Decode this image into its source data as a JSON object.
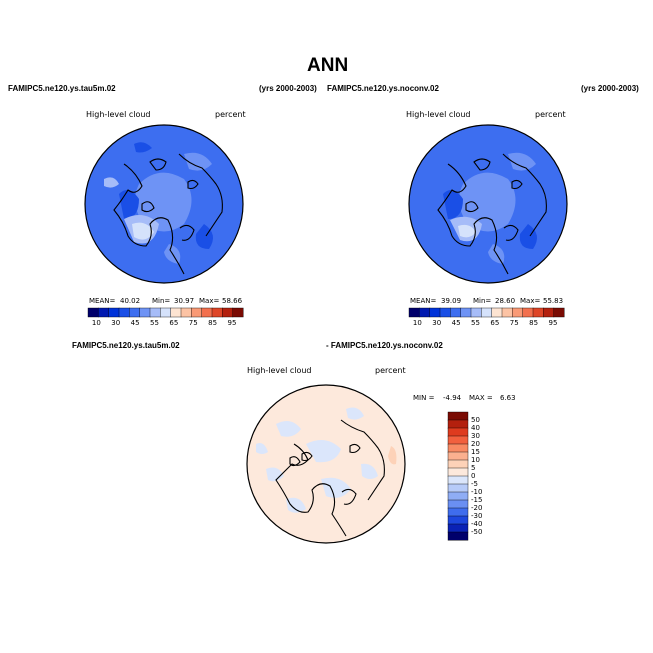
{
  "page": {
    "title": "ANN",
    "left_case": "FAMIPC5.ne120.ys.tau5m.02",
    "left_years": "(yrs 2000-2003)",
    "right_case": "FAMIPC5.ne120.ys.noconv.02",
    "right_years": "(yrs 2000-2003)",
    "diff_left_label": "FAMIPC5.ne120.ys.tau5m.02",
    "diff_right_label": "- FAMIPC5.ne120.ys.noconv.02"
  },
  "panels": [
    {
      "id": "tau5m",
      "variable": "High-level cloud",
      "units": "percent",
      "mean_label": "MEAN=",
      "mean": "40.02",
      "min_label": "Min=",
      "min": "30.97",
      "max_label": "Max=",
      "max": "58.66"
    },
    {
      "id": "noconv",
      "variable": "High-level cloud",
      "units": "percent",
      "mean_label": "MEAN=",
      "mean": "39.09",
      "min_label": "Min=",
      "min": "28.60",
      "max_label": "Max=",
      "max": "55.83"
    }
  ],
  "difference": {
    "variable": "High-level cloud",
    "units": "percent",
    "min_label": "MIN =",
    "min": "-4.94",
    "max_label": "MAX =",
    "max": "6.63"
  },
  "colorbar_abs": {
    "labels": [
      "10",
      "30",
      "45",
      "55",
      "65",
      "75",
      "85",
      "95"
    ],
    "colors": [
      "#00006b",
      "#0019b0",
      "#0033d9",
      "#1a4fe6",
      "#3d6ef0",
      "#6e93f5",
      "#a6bcf8",
      "#d5e2fb",
      "#fde4d2",
      "#fcc3a4",
      "#f99a76",
      "#f2704e",
      "#de4628",
      "#b3200e",
      "#7a0b03"
    ]
  },
  "colorbar_diff": {
    "labels": [
      "50",
      "40",
      "30",
      "20",
      "15",
      "10",
      "5",
      "0",
      "-5",
      "-10",
      "-15",
      "-20",
      "-30",
      "-40",
      "-50"
    ],
    "colors": [
      "#7a0b03",
      "#b3200e",
      "#de3b1f",
      "#f2603e",
      "#f98a63",
      "#fbb08f",
      "#fdd2b8",
      "#fde9dc",
      "#dbe6fb",
      "#b7cbf8",
      "#8fadf5",
      "#6a8ff2",
      "#3f6ded",
      "#1d47dd",
      "#0a22b5",
      "#00006b"
    ]
  }
}
